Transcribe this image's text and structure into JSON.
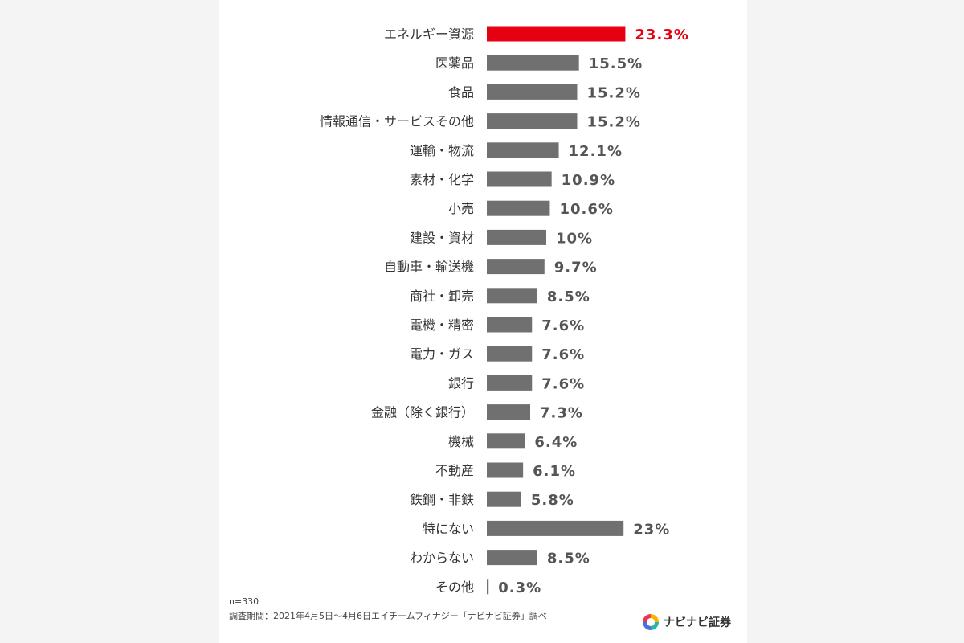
{
  "chart_data": {
    "type": "bar",
    "orientation": "horizontal",
    "categories": [
      "エネルギー資源",
      "医薬品",
      "食品",
      "情報通信・サービスその他",
      "運輸・物流",
      "素材・化学",
      "小売",
      "建設・資材",
      "自動車・輸送機",
      "商社・卸売",
      "電機・精密",
      "電力・ガス",
      "銀行",
      "金融（除く銀行）",
      "機械",
      "不動産",
      "鉄鋼・非鉄",
      "特にない",
      "わからない",
      "その他"
    ],
    "values": [
      23.3,
      15.5,
      15.2,
      15.2,
      12.1,
      10.9,
      10.6,
      10,
      9.7,
      8.5,
      7.6,
      7.6,
      7.6,
      7.3,
      6.4,
      6.1,
      5.8,
      23,
      8.5,
      0.3
    ],
    "value_labels": [
      "23.3%",
      "15.5%",
      "15.2%",
      "15.2%",
      "12.1%",
      "10.9%",
      "10.6%",
      "10%",
      "9.7%",
      "8.5%",
      "7.6%",
      "7.6%",
      "7.6%",
      "7.3%",
      "6.4%",
      "6.1%",
      "5.8%",
      "23%",
      "8.5%",
      "0.3%"
    ],
    "highlight_index": 0,
    "colors": {
      "bar": "#707070",
      "highlight": "#e50012",
      "label": "#333333"
    },
    "grid": false
  },
  "footer": {
    "n": "n=330",
    "source": "調査期間：2021年4月5日～4月6日エイチームフィナジー「ナビナビ証券」調べ"
  },
  "logo": {
    "text": "ナビナビ証券",
    "icon": "navinavi-logo-icon"
  }
}
